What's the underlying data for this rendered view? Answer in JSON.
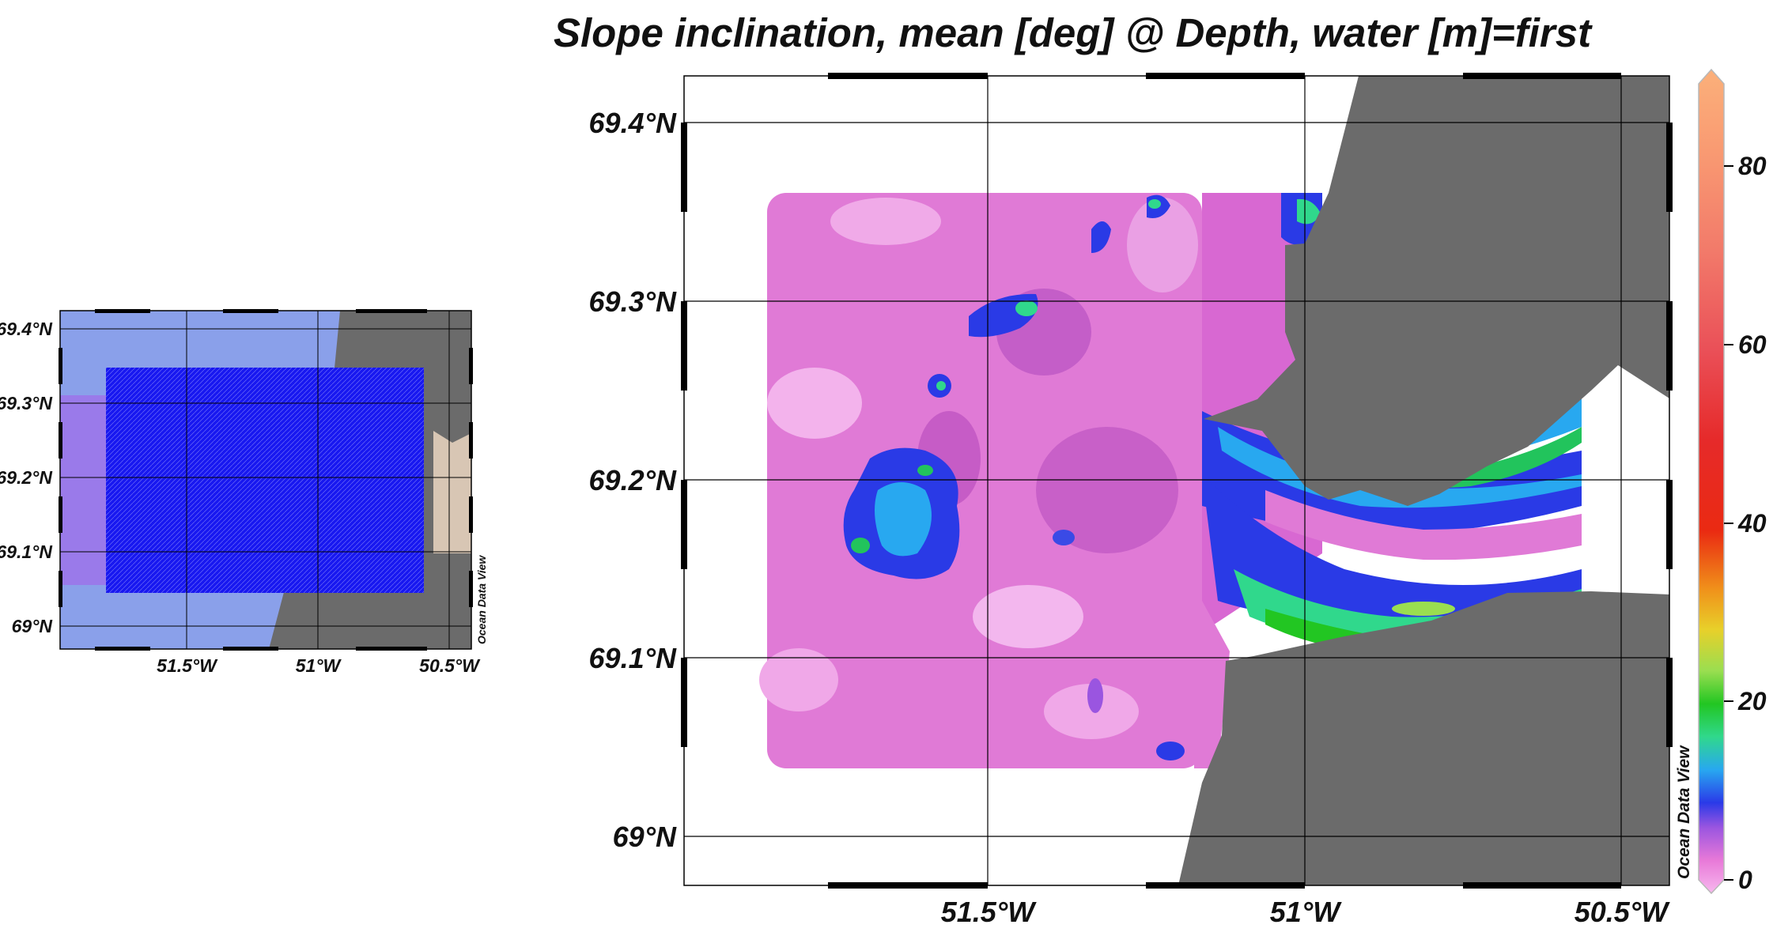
{
  "title": "Slope inclination, mean [deg] @ Depth, water [m]=first",
  "watermark": "Ocean Data View",
  "colors": {
    "land": "#6b6b6b",
    "stations": "#1010ee",
    "frame": "#000000"
  },
  "inset_map": {
    "lat_ticks": [
      "69.4°N",
      "69.3°N",
      "69.2°N",
      "69.1°N",
      "69°N"
    ],
    "lon_ticks": [
      "51.5°W",
      "51°W",
      "50.5°W"
    ],
    "watermark": "Ocean Data View"
  },
  "main_map": {
    "lat_ticks": [
      "69.4°N",
      "69.3°N",
      "69.2°N",
      "69.1°N",
      "69°N"
    ],
    "lon_ticks": [
      "51.5°W",
      "51°W",
      "50.5°W"
    ],
    "watermark": "Ocean Data View"
  },
  "colorbar": {
    "ticks": [
      "80",
      "60",
      "40",
      "20",
      "0"
    ],
    "range": [
      0,
      90
    ]
  }
}
